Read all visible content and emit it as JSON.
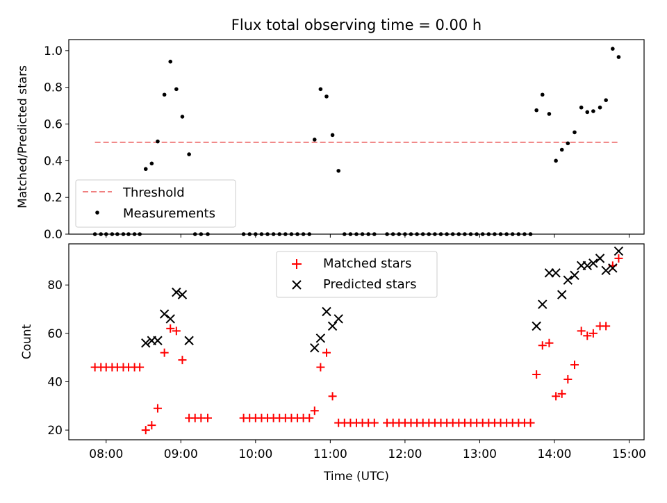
{
  "figure": {
    "title": "Flux total observing time = 0.00 h"
  },
  "chart_data": [
    {
      "type": "scatter",
      "title": "Flux total observing time = 0.00 h",
      "xlabel": "",
      "ylabel": "Matched/Predicted stars",
      "x_unit": "hours UTC",
      "xlim": [
        7.5,
        15.2
      ],
      "ylim": [
        0,
        1.06
      ],
      "yticks": [
        0.0,
        0.2,
        0.4,
        0.6,
        0.8,
        1.0
      ],
      "ytick_labels": [
        "0.0",
        "0.2",
        "0.4",
        "0.6",
        "0.8",
        "1.0"
      ],
      "xticks": [
        8,
        9,
        10,
        11,
        12,
        13,
        14,
        15
      ],
      "legend": {
        "placement": "lower-left",
        "entries": [
          "Threshold",
          "Measurements"
        ]
      },
      "threshold": {
        "name": "Threshold",
        "value": 0.5,
        "x_range": [
          7.85,
          14.85
        ],
        "color": "#f08080"
      },
      "series": [
        {
          "name": "Measurements",
          "marker": "dot",
          "color": "#000000",
          "x": [
            7.85,
            7.93,
            8.0,
            8.08,
            8.15,
            8.23,
            8.3,
            8.38,
            8.45,
            8.53,
            8.61,
            8.69,
            8.78,
            8.86,
            8.94,
            9.02,
            9.11,
            9.19,
            9.27,
            9.36,
            9.84,
            9.92,
            10.0,
            10.08,
            10.16,
            10.24,
            10.32,
            10.4,
            10.48,
            10.56,
            10.64,
            10.72,
            10.79,
            10.87,
            10.95,
            11.03,
            11.11,
            11.19,
            11.27,
            11.35,
            11.43,
            11.51,
            11.59,
            11.76,
            11.84,
            11.92,
            12.0,
            12.08,
            12.16,
            12.24,
            12.32,
            12.4,
            12.48,
            12.56,
            12.64,
            12.72,
            12.8,
            12.88,
            12.96,
            13.04,
            13.12,
            13.2,
            13.28,
            13.36,
            13.44,
            13.52,
            13.6,
            13.68,
            13.76,
            13.84,
            13.93,
            14.02,
            14.1,
            14.18,
            14.27,
            14.36,
            14.44,
            14.52,
            14.61,
            14.69,
            14.78,
            14.86
          ],
          "y": [
            0,
            0,
            0,
            0,
            0,
            0,
            0,
            0,
            0,
            0.355,
            0.385,
            0.505,
            0.76,
            0.94,
            0.79,
            0.64,
            0.435,
            0,
            0,
            0,
            0,
            0,
            0,
            0,
            0,
            0,
            0,
            0,
            0,
            0,
            0,
            0,
            0.515,
            0.79,
            0.75,
            0.54,
            0.345,
            0,
            0,
            0,
            0,
            0,
            0,
            0,
            0,
            0,
            0,
            0,
            0,
            0,
            0,
            0,
            0,
            0,
            0,
            0,
            0,
            0,
            0,
            0,
            0,
            0,
            0,
            0,
            0,
            0,
            0,
            0,
            0.675,
            0.76,
            0.655,
            0.4,
            0.46,
            0.495,
            0.555,
            0.69,
            0.665,
            0.67,
            0.69,
            0.73,
            1.01,
            0.965
          ]
        }
      ]
    },
    {
      "type": "scatter",
      "title": "",
      "xlabel": "Time (UTC)",
      "ylabel": "Count",
      "x_unit": "hours UTC",
      "xlim": [
        7.5,
        15.2
      ],
      "ylim": [
        16,
        97
      ],
      "yticks": [
        20,
        40,
        60,
        80
      ],
      "ytick_labels": [
        "20",
        "40",
        "60",
        "80"
      ],
      "xticks": [
        8,
        9,
        10,
        11,
        12,
        13,
        14,
        15
      ],
      "xtick_labels": [
        "08:00",
        "09:00",
        "10:00",
        "11:00",
        "12:00",
        "13:00",
        "14:00",
        "15:00"
      ],
      "legend": {
        "placement": "upper-center",
        "entries": [
          "Matched stars",
          "Predicted stars"
        ]
      },
      "series": [
        {
          "name": "Matched stars",
          "marker": "plus",
          "color": "#ff0000",
          "x": [
            7.85,
            7.93,
            8.0,
            8.08,
            8.15,
            8.23,
            8.3,
            8.38,
            8.45,
            8.53,
            8.61,
            8.69,
            8.78,
            8.86,
            8.94,
            9.02,
            9.11,
            9.19,
            9.27,
            9.36,
            9.84,
            9.92,
            10.0,
            10.08,
            10.16,
            10.24,
            10.32,
            10.4,
            10.48,
            10.56,
            10.64,
            10.72,
            10.79,
            10.87,
            10.95,
            11.03,
            11.11,
            11.19,
            11.27,
            11.35,
            11.43,
            11.51,
            11.59,
            11.76,
            11.84,
            11.92,
            12.0,
            12.08,
            12.16,
            12.24,
            12.32,
            12.4,
            12.48,
            12.56,
            12.64,
            12.72,
            12.8,
            12.88,
            12.96,
            13.04,
            13.12,
            13.2,
            13.28,
            13.36,
            13.44,
            13.52,
            13.6,
            13.68,
            13.76,
            13.84,
            13.93,
            14.02,
            14.1,
            14.18,
            14.27,
            14.36,
            14.44,
            14.52,
            14.61,
            14.69,
            14.78,
            14.86
          ],
          "y": [
            46,
            46,
            46,
            46,
            46,
            46,
            46,
            46,
            46,
            20,
            22,
            29,
            52,
            62,
            61,
            49,
            25,
            25,
            25,
            25,
            25,
            25,
            25,
            25,
            25,
            25,
            25,
            25,
            25,
            25,
            25,
            25,
            28,
            46,
            52,
            34,
            23,
            23,
            23,
            23,
            23,
            23,
            23,
            23,
            23,
            23,
            23,
            23,
            23,
            23,
            23,
            23,
            23,
            23,
            23,
            23,
            23,
            23,
            23,
            23,
            23,
            23,
            23,
            23,
            23,
            23,
            23,
            23,
            43,
            55,
            56,
            34,
            35,
            41,
            47,
            61,
            59,
            60,
            63,
            63,
            88,
            91
          ]
        },
        {
          "name": "Predicted stars",
          "marker": "x",
          "color": "#000000",
          "x": [
            8.53,
            8.61,
            8.69,
            8.78,
            8.86,
            8.94,
            9.02,
            9.11,
            10.79,
            10.87,
            10.95,
            11.03,
            11.11,
            13.76,
            13.84,
            13.93,
            14.02,
            14.1,
            14.18,
            14.27,
            14.36,
            14.44,
            14.52,
            14.61,
            14.69,
            14.78,
            14.86
          ],
          "y": [
            56,
            57,
            57,
            68,
            66,
            77,
            76,
            57,
            54,
            58,
            69,
            63,
            66,
            63,
            72,
            85,
            85,
            76,
            82,
            84,
            88,
            88,
            89,
            91,
            86,
            87,
            94
          ]
        }
      ]
    }
  ]
}
